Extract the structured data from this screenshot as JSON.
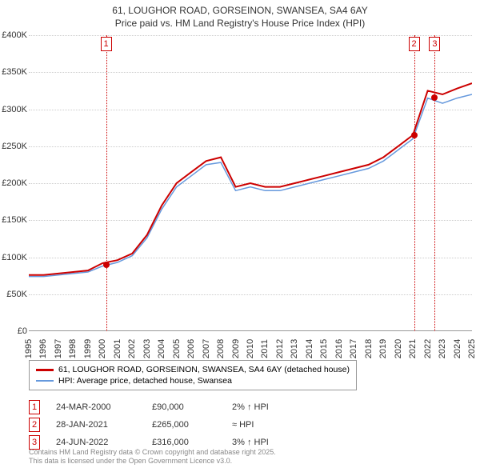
{
  "title_line1": "61, LOUGHOR ROAD, GORSEINON, SWANSEA, SA4 6AY",
  "title_line2": "Price paid vs. HM Land Registry's House Price Index (HPI)",
  "chart": {
    "type": "line",
    "x_years": [
      1995,
      1996,
      1997,
      1998,
      1999,
      2000,
      2001,
      2002,
      2003,
      2004,
      2005,
      2006,
      2007,
      2008,
      2009,
      2010,
      2011,
      2012,
      2013,
      2014,
      2015,
      2016,
      2017,
      2018,
      2019,
      2020,
      2021,
      2022,
      2023,
      2024,
      2025
    ],
    "ylim": [
      0,
      400000
    ],
    "ytick_step": 50000,
    "ytick_labels": [
      "£0",
      "£50K",
      "£100K",
      "£150K",
      "£200K",
      "£250K",
      "£300K",
      "£350K",
      "£400K"
    ],
    "background_color": "#ffffff",
    "grid_color": "#cccccc",
    "series": [
      {
        "name": "price_paid",
        "label": "61, LOUGHOR ROAD, GORSEINON, SWANSEA, SA4 6AY (detached house)",
        "color": "#cc0000",
        "width": 2,
        "x": [
          1995,
          1996,
          1997,
          1998,
          1999,
          2000,
          2001,
          2002,
          2003,
          2004,
          2005,
          2006,
          2007,
          2008,
          2009,
          2010,
          2011,
          2012,
          2013,
          2014,
          2015,
          2016,
          2017,
          2018,
          2019,
          2020,
          2021,
          2022,
          2023,
          2024,
          2025
        ],
        "y": [
          76000,
          76000,
          78000,
          80000,
          82000,
          92000,
          96000,
          105000,
          130000,
          170000,
          200000,
          215000,
          230000,
          235000,
          195000,
          200000,
          195000,
          195000,
          200000,
          205000,
          210000,
          215000,
          220000,
          225000,
          235000,
          250000,
          265000,
          325000,
          320000,
          328000,
          335000
        ]
      },
      {
        "name": "hpi",
        "label": "HPI: Average price, detached house, Swansea",
        "color": "#6699dd",
        "width": 1.5,
        "x": [
          1995,
          1996,
          1997,
          1998,
          1999,
          2000,
          2001,
          2002,
          2003,
          2004,
          2005,
          2006,
          2007,
          2008,
          2009,
          2010,
          2011,
          2012,
          2013,
          2014,
          2015,
          2016,
          2017,
          2018,
          2019,
          2020,
          2021,
          2022,
          2023,
          2024,
          2025
        ],
        "y": [
          74000,
          74000,
          76000,
          78000,
          80000,
          88000,
          93000,
          102000,
          126000,
          165000,
          195000,
          210000,
          225000,
          228000,
          190000,
          195000,
          190000,
          190000,
          195000,
          200000,
          205000,
          210000,
          215000,
          220000,
          230000,
          245000,
          260000,
          315000,
          308000,
          315000,
          320000
        ]
      }
    ],
    "sale_markers": [
      {
        "n": "1",
        "year": 2000.23,
        "price": 90000,
        "color": "#cc0000"
      },
      {
        "n": "2",
        "year": 2021.08,
        "price": 265000,
        "color": "#cc0000"
      },
      {
        "n": "3",
        "year": 2022.48,
        "price": 316000,
        "color": "#cc0000"
      }
    ]
  },
  "legend": {
    "series1_label": "61, LOUGHOR ROAD, GORSEINON, SWANSEA, SA4 6AY (detached house)",
    "series2_label": "HPI: Average price, detached house, Swansea",
    "series1_color": "#cc0000",
    "series2_color": "#6699dd"
  },
  "sales": [
    {
      "n": "1",
      "date": "24-MAR-2000",
      "price": "£90,000",
      "hpi": "2% ↑ HPI",
      "color": "#cc0000"
    },
    {
      "n": "2",
      "date": "28-JAN-2021",
      "price": "£265,000",
      "hpi": "≈ HPI",
      "color": "#cc0000"
    },
    {
      "n": "3",
      "date": "24-JUN-2022",
      "price": "£316,000",
      "hpi": "3% ↑ HPI",
      "color": "#cc0000"
    }
  ],
  "attribution_line1": "Contains HM Land Registry data © Crown copyright and database right 2025.",
  "attribution_line2": "This data is licensed under the Open Government Licence v3.0."
}
